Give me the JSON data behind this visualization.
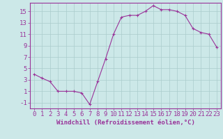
{
  "x": [
    0,
    1,
    2,
    3,
    4,
    5,
    6,
    7,
    8,
    9,
    10,
    11,
    12,
    13,
    14,
    15,
    16,
    17,
    18,
    19,
    20,
    21,
    22,
    23
  ],
  "y": [
    4.0,
    3.3,
    2.7,
    1.0,
    1.0,
    1.0,
    0.7,
    -1.3,
    2.7,
    6.7,
    11.0,
    14.0,
    14.3,
    14.3,
    15.0,
    16.0,
    15.3,
    15.3,
    15.0,
    14.3,
    12.0,
    11.3,
    11.0,
    8.7
  ],
  "line_color": "#993399",
  "marker": "+",
  "marker_color": "#993399",
  "bg_color": "#cce8e8",
  "grid_color": "#aacccc",
  "xlabel": "Windchill (Refroidissement éolien,°C)",
  "xlim": [
    -0.5,
    23.5
  ],
  "ylim": [
    -2.0,
    16.5
  ],
  "yticks": [
    -1,
    1,
    3,
    5,
    7,
    9,
    11,
    13,
    15
  ],
  "xticks": [
    0,
    1,
    2,
    3,
    4,
    5,
    6,
    7,
    8,
    9,
    10,
    11,
    12,
    13,
    14,
    15,
    16,
    17,
    18,
    19,
    20,
    21,
    22,
    23
  ],
  "tick_color": "#993399",
  "xlabel_color": "#993399",
  "spine_color": "#993399",
  "font_size": 6.5,
  "xlabel_fontsize": 6.5
}
